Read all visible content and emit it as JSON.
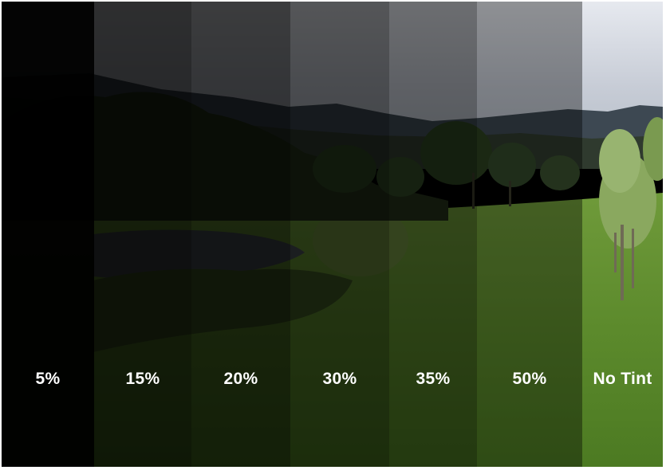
{
  "image": {
    "scene": "landscape-with-pond-trees-hills",
    "sky_color": "#c9ced8",
    "grass_color": "#5e8e2f",
    "hill_color": "#3e4a52"
  },
  "samples": [
    {
      "label": "5%",
      "tint_opacity": 0.985
    },
    {
      "label": "15%",
      "tint_opacity": 0.8
    },
    {
      "label": "20%",
      "tint_opacity": 0.74
    },
    {
      "label": "30%",
      "tint_opacity": 0.63
    },
    {
      "label": "35%",
      "tint_opacity": 0.53
    },
    {
      "label": "50%",
      "tint_opacity": 0.38
    },
    {
      "label": "No Tint",
      "tint_opacity": 0
    }
  ]
}
